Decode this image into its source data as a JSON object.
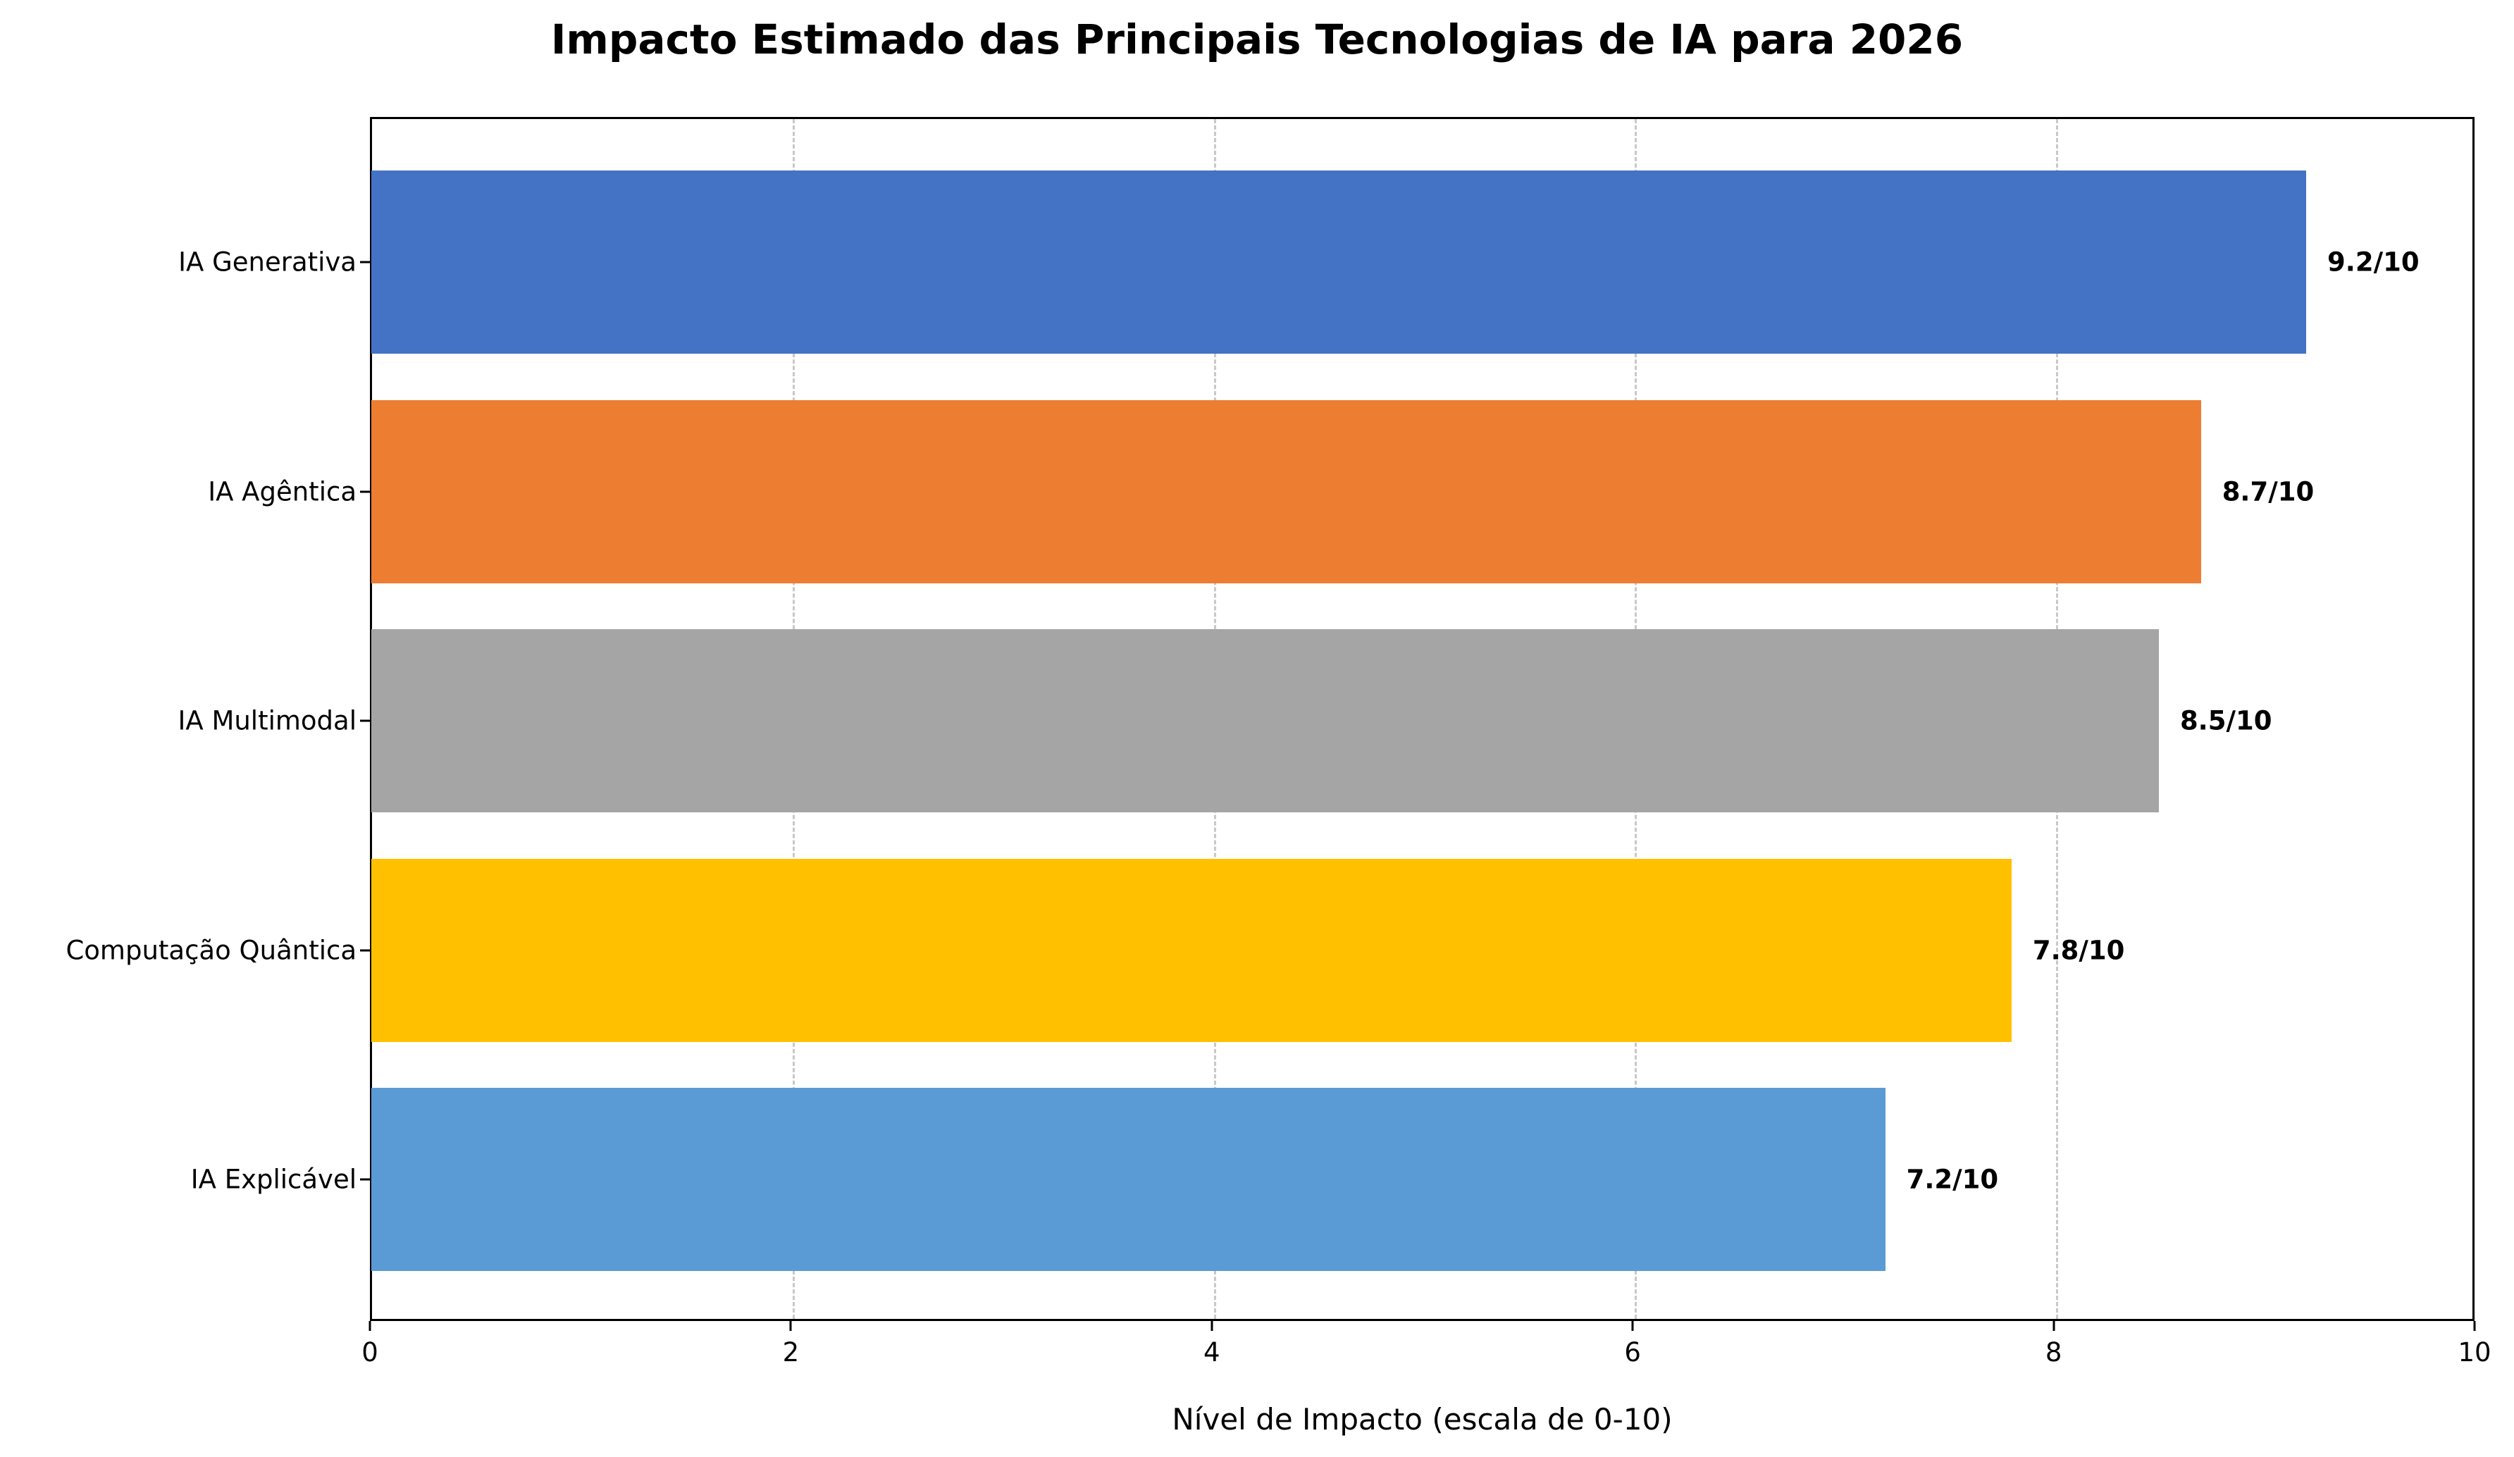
{
  "chart_data": {
    "type": "bar",
    "orientation": "horizontal",
    "title": "Impacto Estimado das Principais Tecnologias de IA para 2026",
    "xlabel": "Nível de Impacto (escala de 0-10)",
    "ylabel": "",
    "xlim": [
      0,
      10
    ],
    "xticks": [
      "0",
      "2",
      "4",
      "6",
      "8",
      "10"
    ],
    "grid": "x, dashed",
    "legend": null,
    "categories": [
      "IA Generativa",
      "IA Agêntica",
      "IA Multimodal",
      "Computação Quântica",
      "IA Explicável"
    ],
    "values": [
      9.2,
      8.7,
      8.5,
      7.8,
      7.2
    ],
    "value_labels": [
      "9.2/10",
      "8.7/10",
      "8.5/10",
      "7.8/10",
      "7.2/10"
    ],
    "colors": [
      "#4472C4",
      "#ED7D31",
      "#A5A5A5",
      "#FFC000",
      "#5B9BD5"
    ]
  }
}
